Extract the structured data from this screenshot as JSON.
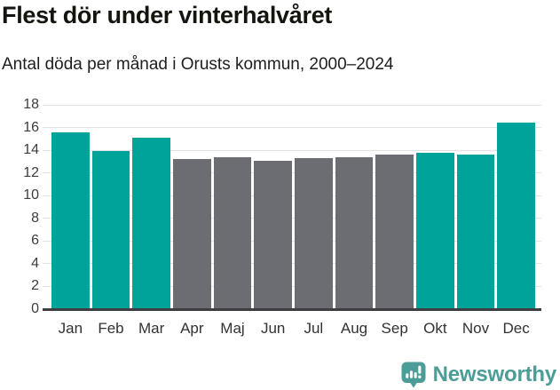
{
  "header": {
    "title": "Flest dör under vinterhalvåret",
    "subtitle": "Antal döda per månad i Orusts kommun, 2000–2024"
  },
  "chart_data": {
    "type": "bar",
    "title": "Flest dör under vinterhalvåret",
    "subtitle": "Antal döda per månad i Orusts kommun, 2000–2024",
    "categories": [
      "Jan",
      "Feb",
      "Mar",
      "Apr",
      "Maj",
      "Jun",
      "Jul",
      "Aug",
      "Sep",
      "Okt",
      "Nov",
      "Dec"
    ],
    "values": [
      15.6,
      13.9,
      15.1,
      13.2,
      13.4,
      13.1,
      13.3,
      13.4,
      13.6,
      13.8,
      13.6,
      16.4
    ],
    "highlighted": [
      true,
      true,
      true,
      false,
      false,
      false,
      false,
      false,
      false,
      true,
      true,
      true
    ],
    "xlabel": "",
    "ylabel": "",
    "ylim": [
      0,
      18
    ],
    "yticks": [
      0,
      2,
      4,
      6,
      8,
      10,
      12,
      14,
      16,
      18
    ],
    "grid": true,
    "legend": false,
    "colors": {
      "highlight": "#00a39a",
      "base": "#6c6c73",
      "gridline": "#e3e3e5",
      "axis_line": "#3e3e40",
      "tick_text": "#3c3c3c"
    }
  },
  "footer": {
    "brand": "Newsworthy",
    "brand_color": "#4c9c97",
    "logo_icon": "speech-bubble-bar-chart-icon"
  }
}
